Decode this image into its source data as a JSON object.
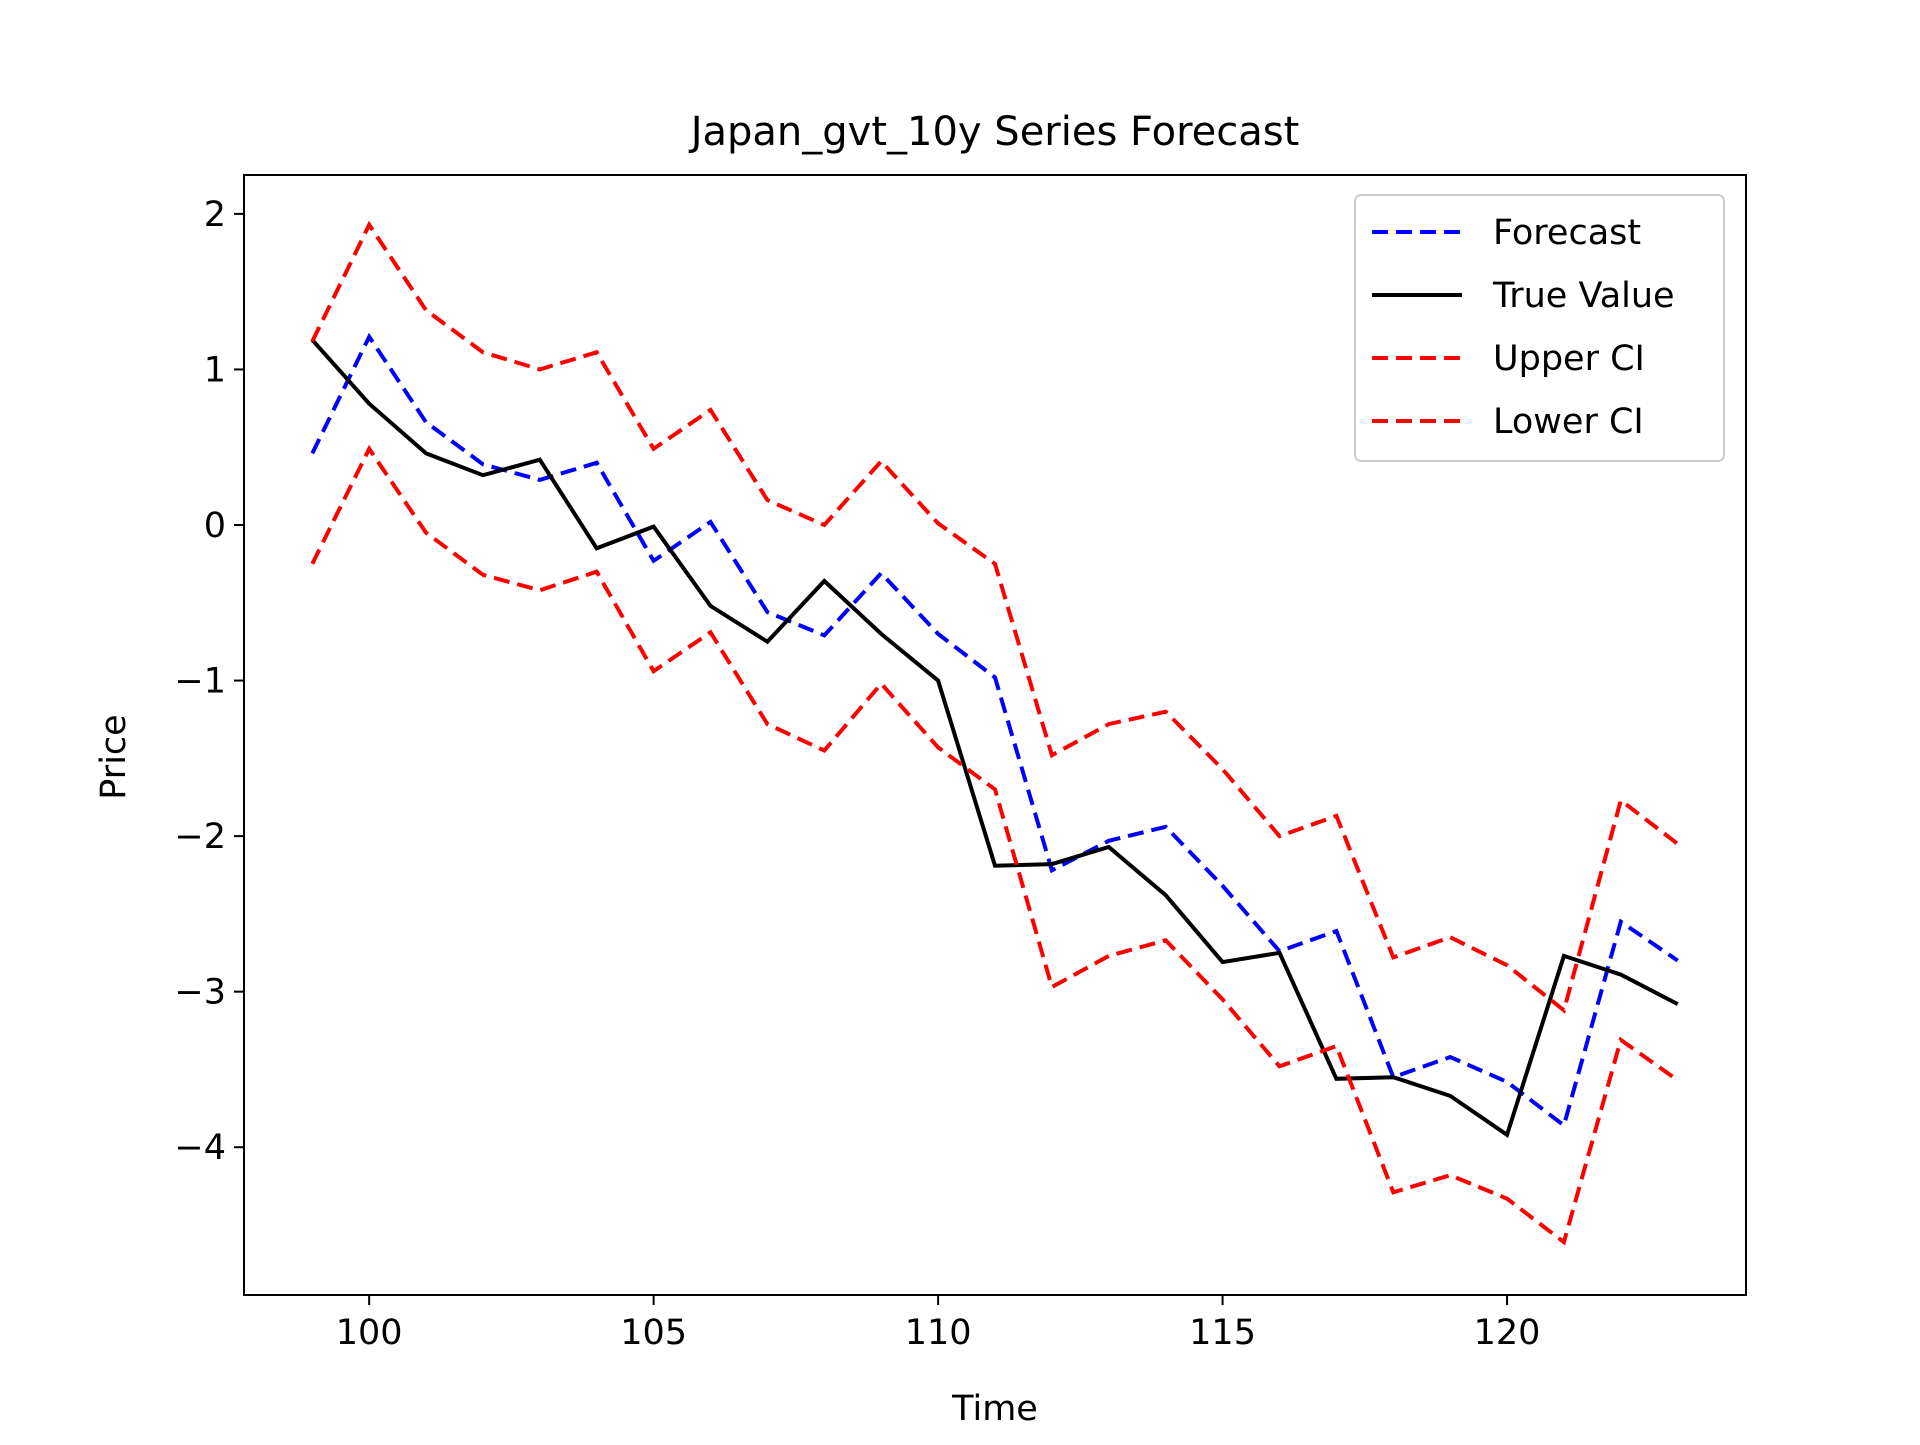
{
  "chart_data": {
    "type": "line",
    "title": "Japan_gvt_10y Series Forecast",
    "xlabel": "Time",
    "ylabel": "Price",
    "xlim": [
      97.8,
      124.2
    ],
    "ylim": [
      -4.95,
      2.25
    ],
    "xticks": [
      100,
      105,
      110,
      115,
      120
    ],
    "yticks": [
      2,
      1,
      0,
      -1,
      -2,
      -3,
      -4
    ],
    "ytick_labels": [
      "2",
      "1",
      "0",
      "−1",
      "−2",
      "−3",
      "−4"
    ],
    "grid": false,
    "legend_position": "upper right",
    "x": [
      99,
      100,
      101,
      102,
      103,
      104,
      105,
      106,
      107,
      108,
      109,
      110,
      111,
      112,
      113,
      114,
      115,
      116,
      117,
      118,
      119,
      120,
      121,
      122,
      123
    ],
    "series": [
      {
        "name": "Forecast",
        "color": "#0000ff",
        "style": "dashed",
        "values": [
          0.46,
          1.21,
          0.66,
          0.39,
          0.29,
          0.4,
          -0.23,
          0.02,
          -0.56,
          -0.71,
          -0.31,
          -0.7,
          -0.98,
          -2.22,
          -2.03,
          -1.94,
          -2.32,
          -2.74,
          -2.61,
          -3.55,
          -3.42,
          -3.58,
          -3.86,
          -2.55,
          -2.8
        ]
      },
      {
        "name": "True Value",
        "color": "#000000",
        "style": "solid",
        "values": [
          1.19,
          0.78,
          0.46,
          0.32,
          0.42,
          -0.15,
          -0.01,
          -0.52,
          -0.75,
          -0.36,
          -0.7,
          -1.0,
          -2.19,
          -2.18,
          -2.07,
          -2.38,
          -2.81,
          -2.75,
          -3.56,
          -3.55,
          -3.67,
          -3.92,
          -2.77,
          -2.89,
          -3.08
        ]
      },
      {
        "name": "Upper CI",
        "color": "#ff0000",
        "style": "dashed",
        "values": [
          1.18,
          1.93,
          1.38,
          1.11,
          1.0,
          1.11,
          0.49,
          0.74,
          0.16,
          0.0,
          0.41,
          0.01,
          -0.25,
          -1.48,
          -1.28,
          -1.2,
          -1.57,
          -2.0,
          -1.87,
          -2.78,
          -2.65,
          -2.83,
          -3.12,
          -1.77,
          -2.05
        ]
      },
      {
        "name": "Lower CI",
        "color": "#ff0000",
        "style": "dashed",
        "values": [
          -0.25,
          0.49,
          -0.05,
          -0.32,
          -0.42,
          -0.3,
          -0.94,
          -0.69,
          -1.28,
          -1.45,
          -1.02,
          -1.43,
          -1.7,
          -2.97,
          -2.77,
          -2.67,
          -3.05,
          -3.48,
          -3.35,
          -4.29,
          -4.18,
          -4.33,
          -4.61,
          -3.31,
          -3.57
        ]
      }
    ]
  }
}
